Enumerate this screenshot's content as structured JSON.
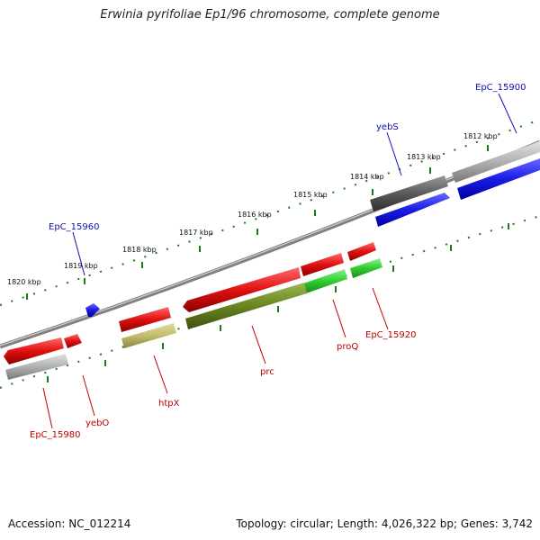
{
  "title": "Erwinia pyrifoliae Ep1/96 chromosome, complete genome",
  "footer": {
    "accession": "Accession: NC_012214",
    "summary": "Topology: circular; Length: 4,026,322 bp; Genes: 3,742"
  },
  "kbp_labels": [
    "1820 kbp",
    "1819 kbp",
    "1818 kbp",
    "1817 kbp",
    "1816 kbp",
    "1815 kbp",
    "1814 kbp",
    "1813 kbp",
    "1812 kbp"
  ],
  "gene_labels": {
    "ep15900": "EpC_15900",
    "yebS": "yebS",
    "ep15960": "EpC_15960",
    "ep15920": "EpC_15920",
    "proQ": "proQ",
    "prc": "prc",
    "htpX": "htpX",
    "yebO": "yebO",
    "ep15980": "EpC_15980"
  },
  "colors": {
    "red": "#e01010",
    "blue": "#1a1ae6",
    "green": "#30cc30",
    "olive": "#6a8420",
    "khaki": "#c2bc6c",
    "gray": "#a9a9a9",
    "darkgray": "#5a5a5a",
    "ticks": "#1a7a1a",
    "backbone": "#808080",
    "label_blue": "#1010b0",
    "label_red": "#c00000"
  }
}
